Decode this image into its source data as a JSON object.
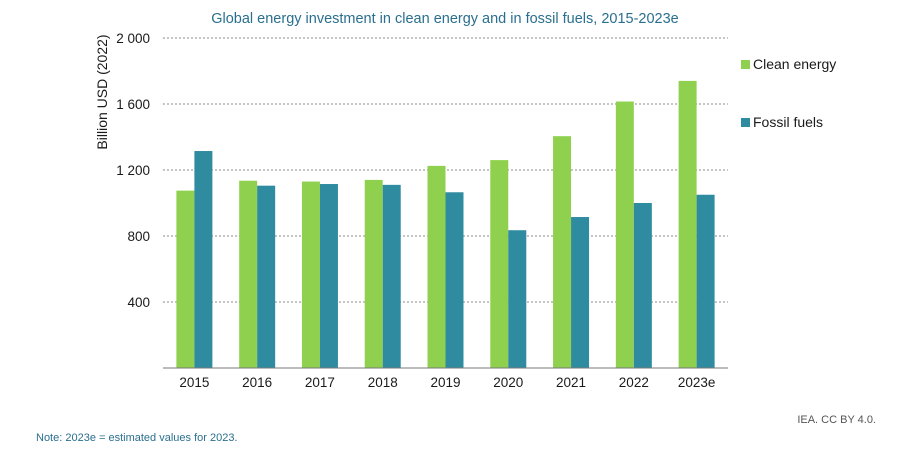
{
  "chart_data": {
    "type": "bar",
    "title": "Global energy investment in clean energy and in fossil fuels, 2015-2023e",
    "ylabel": "Billion USD (2022)",
    "xlabel": "",
    "categories": [
      "2015",
      "2016",
      "2017",
      "2018",
      "2019",
      "2020",
      "2021",
      "2022",
      "2023e"
    ],
    "series": [
      {
        "name": "Clean energy",
        "color": "#8fd14f",
        "values": [
          1075,
          1135,
          1130,
          1140,
          1225,
          1260,
          1405,
          1615,
          1740
        ]
      },
      {
        "name": "Fossil fuels",
        "color": "#2f8ba0",
        "values": [
          1315,
          1105,
          1115,
          1110,
          1065,
          835,
          915,
          1000,
          1050
        ]
      }
    ],
    "ylim": [
      0,
      2000
    ],
    "yticks": [
      400,
      800,
      1200,
      1600,
      2000
    ],
    "ytick_labels": [
      "400",
      "800",
      "1 200",
      "1 600",
      "2 000"
    ],
    "grid": true,
    "legend_position": "right"
  },
  "source": "IEA. CC BY 4.0.",
  "note": "Note:  2023e = estimated values for 2023."
}
